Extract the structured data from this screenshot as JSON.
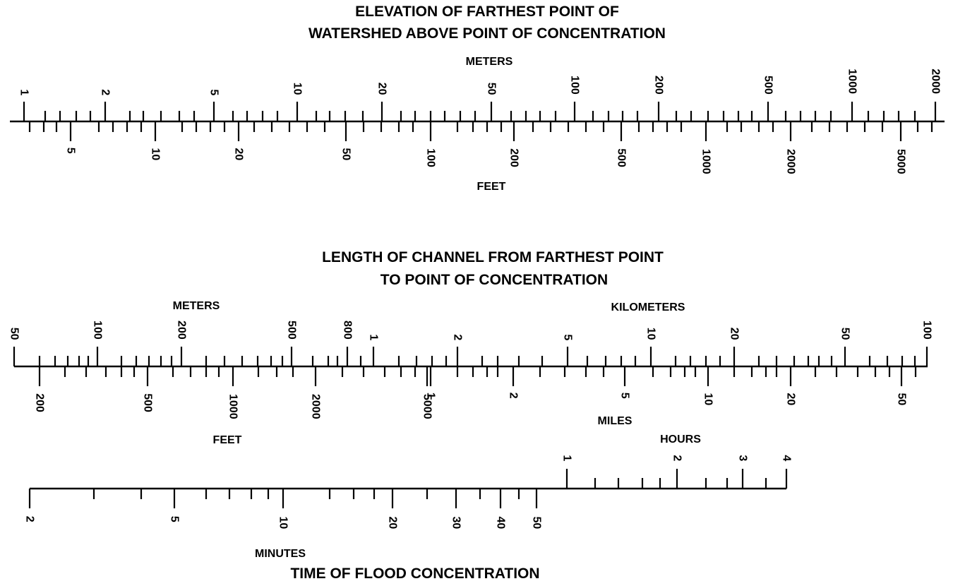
{
  "elevation": {
    "title_line1": "ELEVATION OF FARTHEST POINT OF",
    "title_line2": "WATERSHED ABOVE POINT OF CONCENTRATION",
    "top_unit": "METERS",
    "bottom_unit": "FEET",
    "top_labels": [
      "1",
      "2",
      "5",
      "10",
      "20",
      "50",
      "100",
      "200",
      "500",
      "1000",
      "2000"
    ],
    "bottom_labels": [
      "5",
      "10",
      "20",
      "50",
      "100",
      "200",
      "500",
      "1000",
      "2000",
      "5000"
    ]
  },
  "length": {
    "title_line1": "LENGTH OF CHANNEL FROM FARTHEST POINT",
    "title_line2": "TO POINT OF CONCENTRATION",
    "top_unit_left": "METERS",
    "top_unit_right": "KILOMETERS",
    "bottom_unit_left": "FEET",
    "bottom_unit_right": "MILES",
    "top_labels": [
      "50",
      "100",
      "200",
      "500",
      "800",
      "1",
      "2",
      "5",
      "10",
      "20",
      "50",
      "100"
    ],
    "bottom_labels": [
      "200",
      "500",
      "1000",
      "2000",
      "5000",
      "1",
      "2",
      "5",
      "10",
      "20",
      "50"
    ]
  },
  "time": {
    "title": "TIME OF FLOOD CONCENTRATION",
    "top_unit": "HOURS",
    "bottom_unit": "MINUTES",
    "top_labels": [
      "1",
      "2",
      "3",
      "4"
    ],
    "bottom_labels": [
      "2",
      "5",
      "10",
      "20",
      "30",
      "40",
      "50"
    ]
  }
}
